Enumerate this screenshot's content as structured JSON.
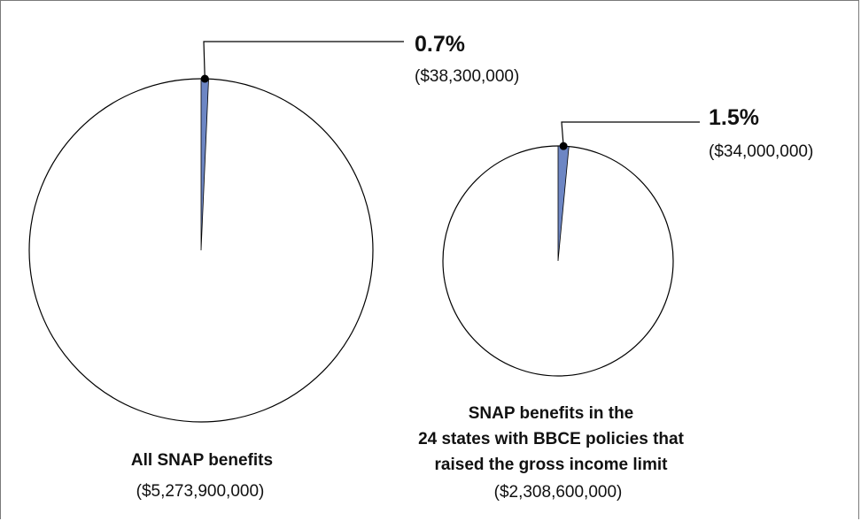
{
  "chart_data": [
    {
      "type": "pie",
      "title_lines": [
        "All SNAP benefits"
      ],
      "total_label": "($5,273,900,000)",
      "total": 5273900000,
      "slices": [
        {
          "value_pct": 0.7,
          "pct_label": "0.7%",
          "amount_label": "($38,300,000)",
          "amount": 38300000,
          "color": "#6d86c4"
        }
      ]
    },
    {
      "type": "pie",
      "title_lines": [
        "SNAP benefits in the",
        "24 states with BBCE policies that",
        "raised the gross income limit"
      ],
      "total_label": "($2,308,600,000)",
      "total": 2308600000,
      "slices": [
        {
          "value_pct": 1.5,
          "pct_label": "1.5%",
          "amount_label": "($34,000,000)",
          "amount": 34000000,
          "color": "#6d86c4"
        }
      ]
    }
  ]
}
